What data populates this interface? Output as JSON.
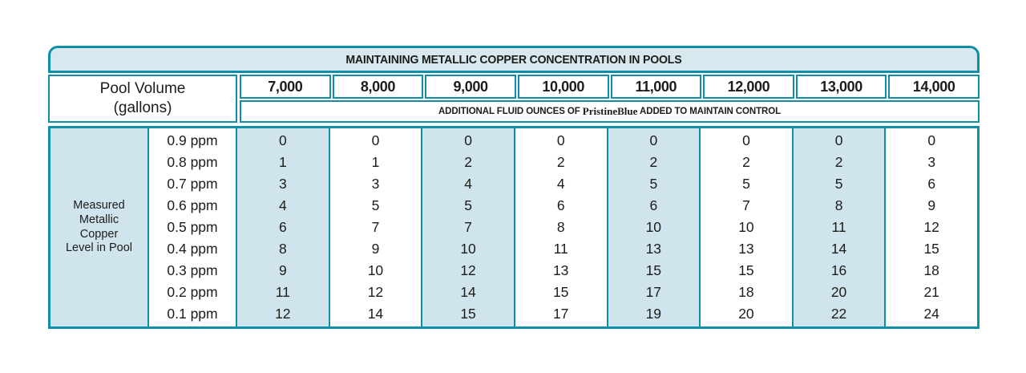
{
  "table": {
    "title": "MAINTAINING METALLIC COPPER CONCENTRATION IN POOLS",
    "pool_volume_label": [
      "Pool Volume",
      "(gallons)"
    ],
    "volumes": [
      "7,000",
      "8,000",
      "9,000",
      "10,000",
      "11,000",
      "12,000",
      "13,000",
      "14,000"
    ],
    "subtitle_prefix": "ADDITIONAL FLUID OUNCES OF ",
    "subtitle_brand": "PristineBlue",
    "subtitle_suffix": " ADDED TO MAINTAIN CONTROL",
    "row_axis_label": [
      "Measured",
      "Metallic",
      "Copper",
      "Level in Pool"
    ],
    "ppm_levels": [
      "0.9 ppm",
      "0.8 ppm",
      "0.7 ppm",
      "0.6 ppm",
      "0.5 ppm",
      "0.4 ppm",
      "0.3 ppm",
      "0.2 ppm",
      "0.1 ppm"
    ]
  },
  "chart_data": {
    "type": "table",
    "title": "MAINTAINING METALLIC COPPER CONCENTRATION IN POOLS",
    "column_group_label": "Pool Volume (gallons)",
    "columns": [
      "7,000",
      "8,000",
      "9,000",
      "10,000",
      "11,000",
      "12,000",
      "13,000",
      "14,000"
    ],
    "values_note": "ADDITIONAL FLUID OUNCES OF PristineBlue ADDED TO MAINTAIN CONTROL",
    "row_group_label": "Measured Metallic Copper Level in Pool",
    "rows": [
      {
        "level": "0.9 ppm",
        "values": [
          0,
          0,
          0,
          0,
          0,
          0,
          0,
          0
        ]
      },
      {
        "level": "0.8 ppm",
        "values": [
          1,
          1,
          2,
          2,
          2,
          2,
          2,
          3
        ]
      },
      {
        "level": "0.7 ppm",
        "values": [
          3,
          3,
          4,
          4,
          5,
          5,
          5,
          6
        ]
      },
      {
        "level": "0.6 ppm",
        "values": [
          4,
          5,
          5,
          6,
          6,
          7,
          8,
          9
        ]
      },
      {
        "level": "0.5 ppm",
        "values": [
          6,
          7,
          7,
          8,
          10,
          10,
          11,
          12
        ]
      },
      {
        "level": "0.4 ppm",
        "values": [
          8,
          9,
          10,
          11,
          13,
          13,
          14,
          15
        ]
      },
      {
        "level": "0.3 ppm",
        "values": [
          9,
          10,
          12,
          13,
          15,
          15,
          16,
          18
        ]
      },
      {
        "level": "0.2 ppm",
        "values": [
          11,
          12,
          14,
          15,
          17,
          18,
          20,
          21
        ]
      },
      {
        "level": "0.1 ppm",
        "values": [
          12,
          14,
          15,
          17,
          19,
          20,
          22,
          24
        ]
      }
    ]
  },
  "colors": {
    "border_teal": "#0e8fa7",
    "shaded_blue": "#cfe4ec",
    "title_bar_blue": "#d7e9ef",
    "text": "#1c1c1a"
  }
}
